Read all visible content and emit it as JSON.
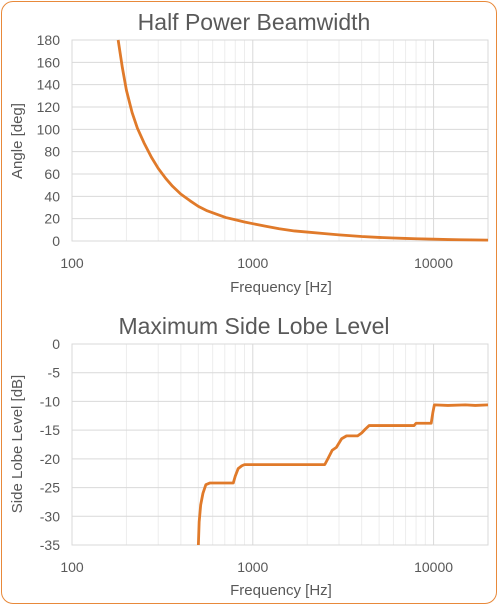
{
  "colors": {
    "series": "#E07A2A",
    "border": "#E8893A",
    "major_grid": "#D9D9D9",
    "minor_grid": "#EDEDED",
    "text": "#595959"
  },
  "chart_data": [
    {
      "type": "line",
      "title": "Half Power Beamwidth",
      "xlabel": "Frequency [Hz]",
      "ylabel": "Angle [deg]",
      "xscale": "log",
      "xlim": [
        100,
        20000
      ],
      "ylim": [
        0,
        180
      ],
      "xticks": [
        100,
        1000,
        10000
      ],
      "xtick_labels": [
        "100",
        "1000",
        "10000"
      ],
      "yticks": [
        0,
        20,
        40,
        60,
        80,
        100,
        120,
        140,
        160,
        180
      ],
      "ytick_labels": [
        "0",
        "20",
        "40",
        "60",
        "80",
        "100",
        "120",
        "140",
        "160",
        "180"
      ],
      "grid": true,
      "legend": "none",
      "series": [
        {
          "x": [
            180,
            190,
            200,
            215,
            230,
            250,
            275,
            300,
            330,
            360,
            400,
            450,
            500,
            560,
            630,
            710,
            800,
            900,
            1000,
            1200,
            1400,
            1700,
            2000,
            2500,
            3000,
            3500,
            4000,
            5000,
            6000,
            7000,
            8000,
            10000,
            12000,
            14000,
            16000,
            18000,
            20000
          ],
          "y": [
            180,
            155,
            135,
            115,
            101,
            88,
            75,
            65,
            56,
            49,
            42,
            36,
            31,
            27,
            24,
            21,
            19,
            17,
            15.5,
            13,
            11,
            9,
            8,
            6.6,
            5.5,
            4.7,
            4,
            3.2,
            2.7,
            2.3,
            2,
            1.6,
            1.3,
            1.1,
            1,
            0.9,
            0.8
          ]
        }
      ]
    },
    {
      "type": "line",
      "title": "Maximum Side Lobe Level",
      "xlabel": "Frequency [Hz]",
      "ylabel": "Side Lobe Level [dB]",
      "xscale": "log",
      "xlim": [
        100,
        20000
      ],
      "ylim": [
        -35,
        0
      ],
      "xticks": [
        100,
        1000,
        10000
      ],
      "xtick_labels": [
        "100",
        "1000",
        "10000"
      ],
      "yticks": [
        0,
        -5,
        -10,
        -15,
        -20,
        -25,
        -30,
        -35
      ],
      "ytick_labels": [
        "0",
        "-5",
        "-10",
        "-15",
        "-20",
        "-25",
        "-30",
        "-35"
      ],
      "grid": true,
      "legend": "none",
      "series": [
        {
          "x": [
            500,
            505,
            515,
            530,
            550,
            580,
            650,
            780,
            800,
            830,
            870,
            900,
            1000,
            1500,
            2000,
            2500,
            2600,
            2750,
            2900,
            3100,
            3300,
            3500,
            3800,
            4000,
            4200,
            4400,
            4600,
            5000,
            6000,
            7000,
            7800,
            8000,
            9000,
            9700,
            9900,
            10100,
            12000,
            15000,
            17000,
            20000
          ],
          "y": [
            -35,
            -31,
            -28,
            -26,
            -24.5,
            -24.2,
            -24.2,
            -24.2,
            -23,
            -21.7,
            -21.2,
            -21,
            -21,
            -21,
            -21,
            -21,
            -20,
            -18.5,
            -18,
            -16.5,
            -16,
            -16,
            -16,
            -15.5,
            -14.8,
            -14.2,
            -14.2,
            -14.2,
            -14.2,
            -14.2,
            -14.2,
            -13.8,
            -13.8,
            -13.8,
            -12,
            -10.6,
            -10.7,
            -10.6,
            -10.7,
            -10.6
          ]
        }
      ]
    }
  ]
}
